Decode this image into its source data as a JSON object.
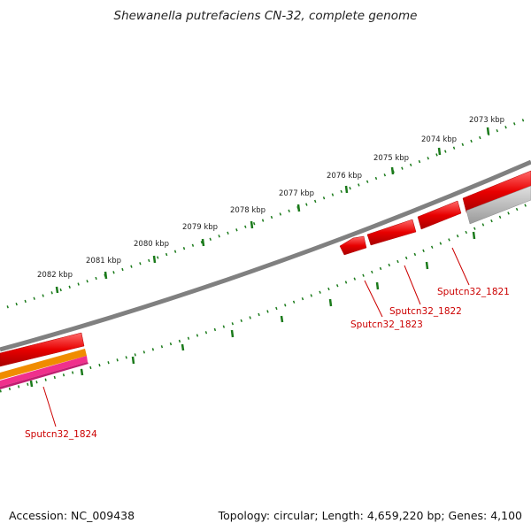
{
  "title": "Shewanella putrefaciens CN-32, complete genome",
  "footer": {
    "accession": "Accession: NC_009438",
    "topology": "Topology: circular; Length: 4,659,220 bp; Genes: 4,100"
  },
  "scale_labels": [
    "2082 kbp",
    "2081 kbp",
    "2080 kbp",
    "2079 kbp",
    "2078 kbp",
    "2077 kbp",
    "2076 kbp",
    "2075 kbp",
    "2074 kbp",
    "2073 kbp"
  ],
  "genes": [
    {
      "id": "Sputcn32_1821",
      "color": "#e00000"
    },
    {
      "id": "Sputcn32_1822",
      "color": "#e00000"
    },
    {
      "id": "Sputcn32_1823",
      "color": "#e00000"
    },
    {
      "id": "Sputcn32_1824",
      "color": "#e00000"
    }
  ],
  "colors": {
    "backbone": "#808080",
    "ticks": "#1a7a1a",
    "gene_cds": "#e00000",
    "label": "#cc0000",
    "orange_track": "#f08c00",
    "pink_track": "#f0308c",
    "grey_gene": "#b4b4b4"
  }
}
